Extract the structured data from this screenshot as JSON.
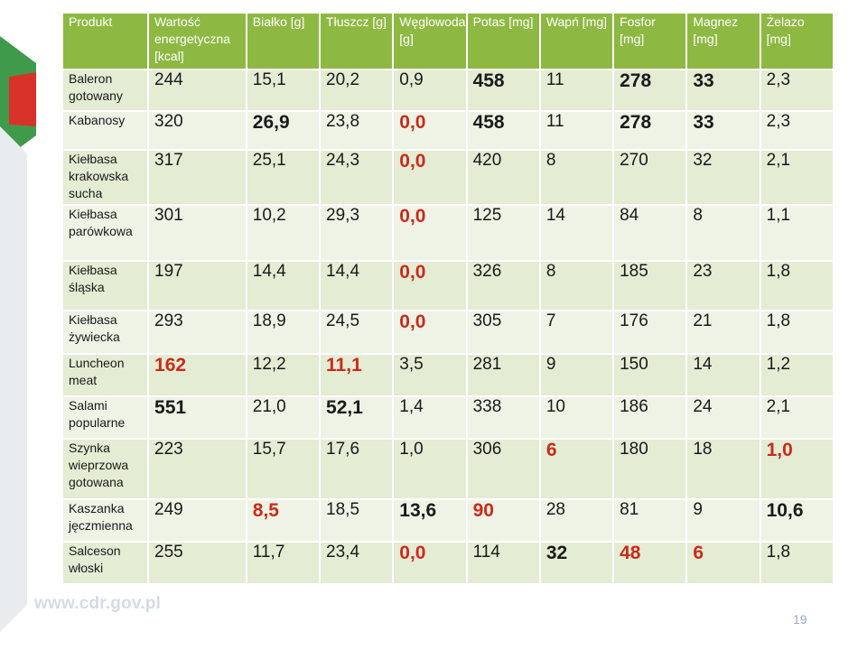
{
  "table": {
    "headers": [
      "Produkt",
      "Wartość energetyczna [kcal]",
      "Białko [g]",
      "Tłuszcz [g]",
      "Węglowodany [g]",
      "Potas [mg]",
      "Wapń [mg]",
      "Fosfor [mg]",
      "Magnez [mg]",
      "Żelazo [mg]"
    ],
    "rows": [
      {
        "name": "Baleron gotowany",
        "values": [
          "244",
          "15,1",
          "20,2",
          "0,9",
          "458",
          "11",
          "278",
          "33",
          "2,3"
        ],
        "red": [],
        "bold": [
          4,
          6,
          7
        ]
      },
      {
        "name": "Kabanosy",
        "values": [
          "320",
          "26,9",
          "23,8",
          "0,0",
          "458",
          "11",
          "278",
          "33",
          "2,3"
        ],
        "red": [
          3
        ],
        "bold": [
          1,
          4,
          6,
          7
        ]
      },
      {
        "name": "Kiełbasa krakowska sucha",
        "values": [
          "317",
          "25,1",
          "24,3",
          "0,0",
          "420",
          "8",
          "270",
          "32",
          "2,1"
        ],
        "red": [
          3
        ],
        "bold": []
      },
      {
        "name": "Kiełbasa parówkowa",
        "values": [
          "301",
          "10,2",
          "29,3",
          "0,0",
          "125",
          "14",
          "84",
          "8",
          "1,1"
        ],
        "red": [
          3
        ],
        "bold": []
      },
      {
        "name": "Kiełbasa śląska",
        "values": [
          "197",
          "14,4",
          "14,4",
          "0,0",
          "326",
          "8",
          "185",
          "23",
          "1,8"
        ],
        "red": [
          3
        ],
        "bold": []
      },
      {
        "name": "Kiełbasa żywiecka",
        "values": [
          "293",
          "18,9",
          "24,5",
          "0,0",
          "305",
          "7",
          "176",
          "21",
          "1,8"
        ],
        "red": [
          3
        ],
        "bold": []
      },
      {
        "name": "Luncheon meat",
        "values": [
          "162",
          "12,2",
          "11,1",
          "3,5",
          "281",
          "9",
          "150",
          "14",
          "1,2"
        ],
        "red": [
          0,
          2
        ],
        "bold": []
      },
      {
        "name": "Salami popularne",
        "values": [
          "551",
          "21,0",
          "52,1",
          "1,4",
          "338",
          "10",
          "186",
          "24",
          "2,1"
        ],
        "red": [],
        "bold": [
          0,
          2
        ]
      },
      {
        "name": "Szynka wieprzowa gotowana",
        "values": [
          "223",
          "15,7",
          "17,6",
          "1,0",
          "306",
          "6",
          "180",
          "18",
          "1,0"
        ],
        "red": [
          5,
          8
        ],
        "bold": []
      },
      {
        "name": "Kaszanka jęczmienna",
        "values": [
          "249",
          "8,5",
          "18,5",
          "13,6",
          "90",
          "28",
          "81",
          "9",
          "10,6"
        ],
        "red": [
          1,
          4
        ],
        "bold": [
          3,
          8
        ]
      },
      {
        "name": "Salceson włoski",
        "values": [
          "255",
          "11,7",
          "23,4",
          "0,0",
          "114",
          "32",
          "48",
          "6",
          "1,8"
        ],
        "red": [
          3,
          6,
          7
        ],
        "bold": [
          5
        ]
      }
    ]
  },
  "footer": {
    "url": "www.cdr.gov.pl",
    "page": "19"
  },
  "colors": {
    "header": "#8db943",
    "row": "#e4ecd4",
    "row_alt": "#eef3e6",
    "highlight_red": "#cc2a1a"
  }
}
